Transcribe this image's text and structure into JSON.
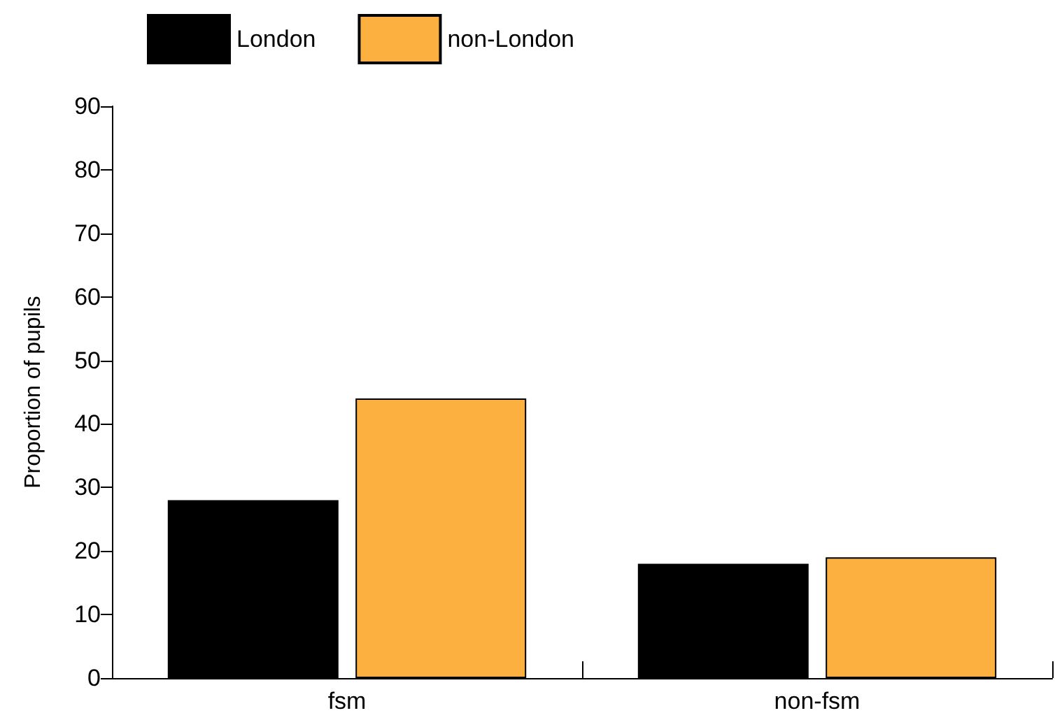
{
  "chart_data": {
    "type": "bar",
    "ylabel": "Proportion of pupils",
    "categories": [
      "fsm",
      "non-fsm"
    ],
    "series": [
      {
        "name": "London",
        "color": "#000000",
        "values": [
          28,
          18
        ]
      },
      {
        "name": "non-London",
        "color": "#fbb040",
        "values": [
          44,
          19
        ]
      }
    ],
    "ylim": [
      0,
      90
    ],
    "yticks": [
      0,
      10,
      20,
      30,
      40,
      50,
      60,
      70,
      80,
      90
    ],
    "grid": false,
    "legend": "top left"
  }
}
